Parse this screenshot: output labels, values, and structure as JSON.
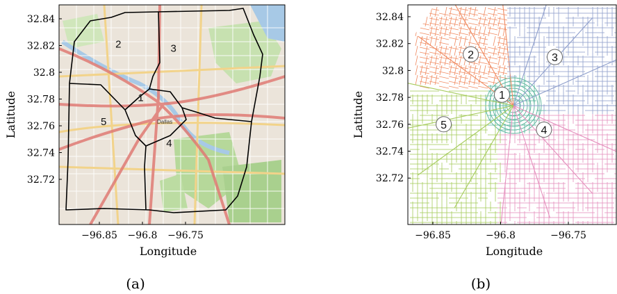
{
  "panels": [
    {
      "id": "a",
      "caption": "(a)",
      "xlabel": "Longitude",
      "ylabel": "Latitude",
      "xticks": [
        "−96.85",
        "−96.8",
        "−96.75"
      ],
      "yticks": [
        "32.84",
        "32.82",
        "32.8",
        "32.78",
        "32.76",
        "32.74",
        "32.72"
      ],
      "basemap_place_label": "Dallas",
      "regions": [
        {
          "label": "1",
          "lon": -96.802,
          "lat": 32.781
        },
        {
          "label": "2",
          "lon": -96.828,
          "lat": 32.821
        },
        {
          "label": "3",
          "lon": -96.764,
          "lat": 32.818
        },
        {
          "label": "4",
          "lon": -96.769,
          "lat": 32.747
        },
        {
          "label": "5",
          "lon": -96.845,
          "lat": 32.763
        }
      ]
    },
    {
      "id": "b",
      "caption": "(b)",
      "xlabel": "Longitude",
      "ylabel": "Latitude",
      "xticks": [
        "−96.85",
        "−96.8",
        "−96.75"
      ],
      "yticks": [
        "32.84",
        "32.82",
        "32.8",
        "32.78",
        "32.76",
        "32.74",
        "32.72"
      ],
      "regions": [
        {
          "label": "1",
          "lon": -96.799,
          "lat": 32.782,
          "color": "#55b39a"
        },
        {
          "label": "2",
          "lon": -96.822,
          "lat": 32.812,
          "color": "#f08a60"
        },
        {
          "label": "3",
          "lon": -96.76,
          "lat": 32.81,
          "color": "#8f9fcc"
        },
        {
          "label": "4",
          "lon": -96.768,
          "lat": 32.756,
          "color": "#e58fbd"
        },
        {
          "label": "5",
          "lon": -96.842,
          "lat": 32.76,
          "color": "#a5cb5b"
        }
      ]
    }
  ],
  "colors": {
    "basemap": "#ebe4da",
    "park": "#b6d89a",
    "water": "#a7c9e6",
    "highway": "#e07b74",
    "major_road": "#f2d38a",
    "region_border": "#000000"
  }
}
